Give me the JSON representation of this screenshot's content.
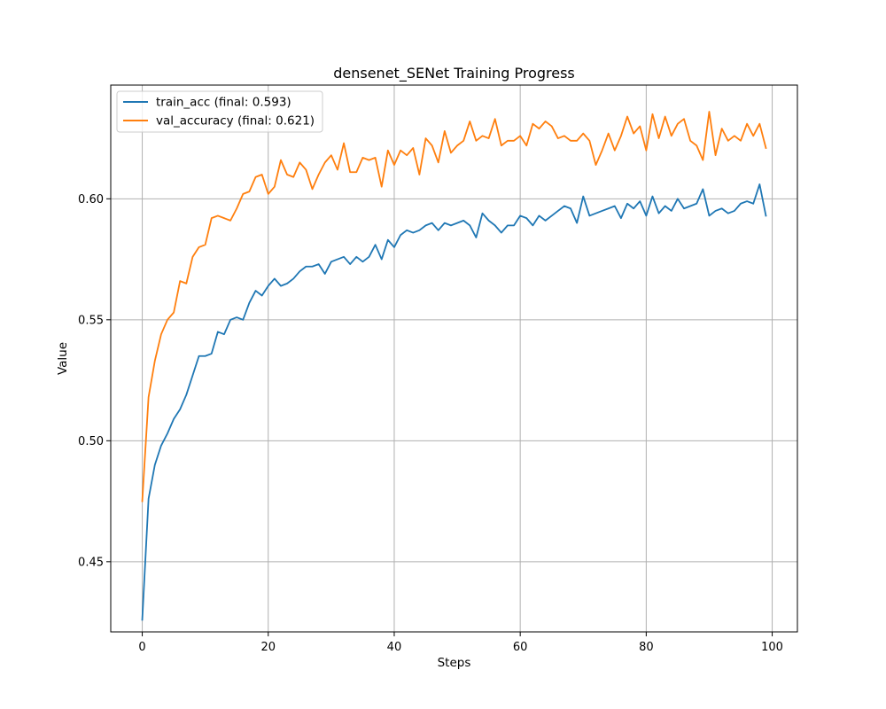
{
  "chart_data": {
    "type": "line",
    "title": "densenet_SENet Training Progress",
    "xlabel": "Steps",
    "ylabel": "Value",
    "xlim": [
      -5,
      104
    ],
    "ylim": [
      0.421,
      0.647
    ],
    "xticks": [
      0,
      20,
      40,
      60,
      80,
      100
    ],
    "xtick_labels": [
      "0",
      "20",
      "40",
      "60",
      "80",
      "100"
    ],
    "yticks": [
      0.45,
      0.5,
      0.55,
      0.6
    ],
    "ytick_labels": [
      "0.45",
      "0.50",
      "0.55",
      "0.60"
    ],
    "grid": true,
    "legend_position": "upper-left",
    "series": [
      {
        "name": "train_acc (final: 0.593)",
        "color": "#1f77b4",
        "x": [
          0,
          1,
          2,
          3,
          4,
          5,
          6,
          7,
          8,
          9,
          10,
          11,
          12,
          13,
          14,
          15,
          16,
          17,
          18,
          19,
          20,
          21,
          22,
          23,
          24,
          25,
          26,
          27,
          28,
          29,
          30,
          31,
          32,
          33,
          34,
          35,
          36,
          37,
          38,
          39,
          40,
          41,
          42,
          43,
          44,
          45,
          46,
          47,
          48,
          49,
          50,
          51,
          52,
          53,
          54,
          55,
          56,
          57,
          58,
          59,
          60,
          61,
          62,
          63,
          64,
          65,
          66,
          67,
          68,
          69,
          70,
          71,
          72,
          73,
          74,
          75,
          76,
          77,
          78,
          79,
          80,
          81,
          82,
          83,
          84,
          85,
          86,
          87,
          88,
          89,
          90,
          91,
          92,
          93,
          94,
          95,
          96,
          97,
          98,
          99
        ],
        "values": [
          0.426,
          0.476,
          0.49,
          0.498,
          0.503,
          0.509,
          0.513,
          0.519,
          0.527,
          0.535,
          0.535,
          0.536,
          0.545,
          0.544,
          0.55,
          0.551,
          0.55,
          0.557,
          0.562,
          0.56,
          0.564,
          0.567,
          0.564,
          0.565,
          0.567,
          0.57,
          0.572,
          0.572,
          0.573,
          0.569,
          0.574,
          0.575,
          0.576,
          0.573,
          0.576,
          0.574,
          0.576,
          0.581,
          0.575,
          0.583,
          0.58,
          0.585,
          0.587,
          0.586,
          0.587,
          0.589,
          0.59,
          0.587,
          0.59,
          0.589,
          0.59,
          0.591,
          0.589,
          0.584,
          0.594,
          0.591,
          0.589,
          0.586,
          0.589,
          0.589,
          0.593,
          0.592,
          0.589,
          0.593,
          0.591,
          0.593,
          0.595,
          0.597,
          0.596,
          0.59,
          0.601,
          0.593,
          0.594,
          0.595,
          0.596,
          0.597,
          0.592,
          0.598,
          0.596,
          0.599,
          0.593,
          0.601,
          0.594,
          0.597,
          0.595,
          0.6,
          0.596,
          0.597,
          0.598,
          0.604,
          0.593,
          0.595,
          0.596,
          0.594,
          0.595,
          0.598,
          0.599,
          0.598,
          0.606,
          0.593
        ]
      },
      {
        "name": "val_accuracy (final: 0.621)",
        "color": "#ff7f0e",
        "x": [
          0,
          1,
          2,
          3,
          4,
          5,
          6,
          7,
          8,
          9,
          10,
          11,
          12,
          13,
          14,
          15,
          16,
          17,
          18,
          19,
          20,
          21,
          22,
          23,
          24,
          25,
          26,
          27,
          28,
          29,
          30,
          31,
          32,
          33,
          34,
          35,
          36,
          37,
          38,
          39,
          40,
          41,
          42,
          43,
          44,
          45,
          46,
          47,
          48,
          49,
          50,
          51,
          52,
          53,
          54,
          55,
          56,
          57,
          58,
          59,
          60,
          61,
          62,
          63,
          64,
          65,
          66,
          67,
          68,
          69,
          70,
          71,
          72,
          73,
          74,
          75,
          76,
          77,
          78,
          79,
          80,
          81,
          82,
          83,
          84,
          85,
          86,
          87,
          88,
          89,
          90,
          91,
          92,
          93,
          94,
          95,
          96,
          97,
          98,
          99
        ],
        "values": [
          0.475,
          0.518,
          0.533,
          0.544,
          0.55,
          0.553,
          0.566,
          0.565,
          0.576,
          0.58,
          0.581,
          0.592,
          0.593,
          0.592,
          0.591,
          0.596,
          0.602,
          0.603,
          0.609,
          0.61,
          0.602,
          0.605,
          0.616,
          0.61,
          0.609,
          0.615,
          0.612,
          0.604,
          0.61,
          0.615,
          0.618,
          0.612,
          0.623,
          0.611,
          0.611,
          0.617,
          0.616,
          0.617,
          0.605,
          0.62,
          0.614,
          0.62,
          0.618,
          0.621,
          0.61,
          0.625,
          0.622,
          0.615,
          0.628,
          0.619,
          0.622,
          0.624,
          0.632,
          0.624,
          0.626,
          0.625,
          0.633,
          0.622,
          0.624,
          0.624,
          0.626,
          0.622,
          0.631,
          0.629,
          0.632,
          0.63,
          0.625,
          0.626,
          0.624,
          0.624,
          0.627,
          0.624,
          0.614,
          0.62,
          0.627,
          0.62,
          0.626,
          0.634,
          0.627,
          0.63,
          0.62,
          0.635,
          0.625,
          0.634,
          0.626,
          0.631,
          0.633,
          0.624,
          0.622,
          0.616,
          0.636,
          0.618,
          0.629,
          0.624,
          0.626,
          0.624,
          0.631,
          0.626,
          0.631,
          0.621
        ]
      }
    ]
  }
}
